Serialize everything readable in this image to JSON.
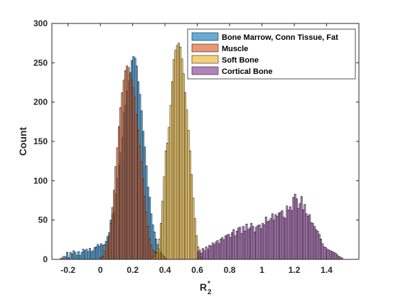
{
  "chart_data": {
    "type": "histogram",
    "xlabel": "R",
    "xlabel_sub": "2",
    "xlabel_sup": "*",
    "ylabel": "Count",
    "xlim": [
      -0.3,
      1.6
    ],
    "ylim": [
      0,
      300
    ],
    "xticks": [
      -0.2,
      0,
      0.2,
      0.4,
      0.6,
      0.8,
      1,
      1.2,
      1.4
    ],
    "xtick_labels": [
      "-0.2",
      "0",
      "0.2",
      "0.4",
      "0.6",
      "0.8",
      "1",
      "1.2",
      "1.4"
    ],
    "yticks": [
      0,
      50,
      100,
      150,
      200,
      250,
      300
    ],
    "ytick_labels": [
      "0",
      "50",
      "100",
      "150",
      "200",
      "250",
      "300"
    ],
    "bin_width": 0.01,
    "grid": false,
    "legend_position": "top-right",
    "series": [
      {
        "name": "Bone Marrow, Conn Tissue, Fat",
        "color": "#0072BD",
        "alpha": 0.6,
        "peak_center": 0.2,
        "x": [
          -0.25,
          -0.24,
          -0.23,
          -0.22,
          -0.21,
          -0.2,
          -0.19,
          -0.18,
          -0.17,
          -0.16,
          -0.15,
          -0.14,
          -0.13,
          -0.12,
          -0.11,
          -0.1,
          -0.09,
          -0.08,
          -0.07,
          -0.06,
          -0.05,
          -0.04,
          -0.03,
          -0.02,
          -0.01,
          0.0,
          0.01,
          0.02,
          0.03,
          0.04,
          0.05,
          0.06,
          0.07,
          0.08,
          0.09,
          0.1,
          0.11,
          0.12,
          0.13,
          0.14,
          0.15,
          0.16,
          0.17,
          0.18,
          0.19,
          0.2,
          0.21,
          0.22,
          0.23,
          0.24,
          0.25,
          0.26,
          0.27,
          0.28,
          0.29,
          0.3,
          0.31,
          0.32,
          0.33,
          0.34,
          0.35,
          0.36,
          0.37,
          0.38,
          0.39,
          0.4
        ],
        "values": [
          1,
          2,
          4,
          3,
          9,
          2,
          9,
          7,
          11,
          9,
          5,
          10,
          5,
          9,
          13,
          11,
          13,
          10,
          14,
          10,
          11,
          15,
          16,
          19,
          17,
          20,
          18,
          19,
          23,
          29,
          34,
          50,
          57,
          60,
          83,
          103,
          120,
          135,
          155,
          187,
          196,
          214,
          227,
          238,
          253,
          258,
          256,
          246,
          226,
          210,
          189,
          163,
          143,
          119,
          92,
          79,
          58,
          44,
          35,
          26,
          19,
          13,
          9,
          6,
          4,
          2
        ]
      },
      {
        "name": "Muscle",
        "color": "#D95319",
        "alpha": 0.6,
        "peak_center": 0.18,
        "x": [
          0.0,
          0.01,
          0.02,
          0.03,
          0.04,
          0.05,
          0.06,
          0.07,
          0.08,
          0.09,
          0.1,
          0.11,
          0.12,
          0.13,
          0.14,
          0.15,
          0.16,
          0.17,
          0.18,
          0.19,
          0.2,
          0.21,
          0.22,
          0.23,
          0.24,
          0.25,
          0.26,
          0.27,
          0.28,
          0.29,
          0.3,
          0.31,
          0.32,
          0.33,
          0.34,
          0.35,
          0.36,
          0.37,
          0.38,
          0.39,
          0.4
        ],
        "values": [
          2,
          4,
          10,
          18,
          22,
          30,
          46,
          66,
          88,
          118,
          142,
          169,
          193,
          212,
          228,
          240,
          246,
          244,
          235,
          228,
          218,
          206,
          184,
          164,
          144,
          124,
          102,
          80,
          60,
          42,
          26,
          18,
          12,
          10,
          9,
          9,
          6,
          8,
          5,
          3,
          2
        ]
      },
      {
        "name": "Soft Bone",
        "color": "#EDB120",
        "alpha": 0.6,
        "peak_center": 0.48,
        "x": [
          0.32,
          0.33,
          0.34,
          0.35,
          0.36,
          0.37,
          0.38,
          0.39,
          0.4,
          0.41,
          0.42,
          0.43,
          0.44,
          0.45,
          0.46,
          0.47,
          0.48,
          0.49,
          0.5,
          0.51,
          0.52,
          0.53,
          0.54,
          0.55,
          0.56,
          0.57,
          0.58,
          0.59,
          0.6,
          0.61,
          0.62
        ],
        "values": [
          2,
          4,
          8,
          14,
          26,
          46,
          74,
          105,
          138,
          148,
          168,
          196,
          226,
          254,
          266,
          272,
          275,
          270,
          255,
          236,
          212,
          190,
          164,
          138,
          108,
          78,
          52,
          30,
          16,
          8,
          3
        ]
      },
      {
        "name": "Cortical Bone",
        "color": "#7E2F8E",
        "alpha": 0.6,
        "peak_center": 1.2,
        "x": [
          0.6,
          0.61,
          0.62,
          0.63,
          0.64,
          0.65,
          0.66,
          0.67,
          0.68,
          0.69,
          0.7,
          0.71,
          0.72,
          0.73,
          0.74,
          0.75,
          0.76,
          0.77,
          0.78,
          0.79,
          0.8,
          0.81,
          0.82,
          0.83,
          0.84,
          0.85,
          0.86,
          0.87,
          0.88,
          0.89,
          0.9,
          0.91,
          0.92,
          0.93,
          0.94,
          0.95,
          0.96,
          0.97,
          0.98,
          0.99,
          1.0,
          1.01,
          1.02,
          1.03,
          1.04,
          1.05,
          1.06,
          1.07,
          1.08,
          1.09,
          1.1,
          1.11,
          1.12,
          1.13,
          1.14,
          1.15,
          1.16,
          1.17,
          1.18,
          1.19,
          1.2,
          1.21,
          1.22,
          1.23,
          1.24,
          1.25,
          1.26,
          1.27,
          1.28,
          1.29,
          1.3,
          1.31,
          1.32,
          1.33,
          1.34,
          1.35,
          1.36,
          1.37,
          1.38,
          1.39,
          1.4,
          1.41,
          1.42,
          1.43,
          1.44,
          1.45,
          1.46,
          1.47,
          1.48,
          1.49
        ],
        "values": [
          10,
          12,
          8,
          14,
          11,
          16,
          13,
          18,
          17,
          21,
          19,
          22,
          24,
          20,
          26,
          28,
          25,
          30,
          31,
          32,
          28,
          34,
          38,
          30,
          36,
          40,
          41,
          33,
          42,
          36,
          45,
          38,
          40,
          46,
          42,
          35,
          41,
          43,
          44,
          39,
          46,
          44,
          54,
          48,
          49,
          52,
          58,
          50,
          57,
          55,
          59,
          60,
          62,
          54,
          52,
          68,
          63,
          67,
          62,
          79,
          83,
          77,
          65,
          71,
          80,
          63,
          70,
          58,
          55,
          57,
          47,
          46,
          42,
          38,
          36,
          32,
          26,
          20,
          16,
          15,
          13,
          12,
          11,
          10,
          9,
          8,
          6,
          4,
          3,
          2
        ]
      }
    ]
  }
}
